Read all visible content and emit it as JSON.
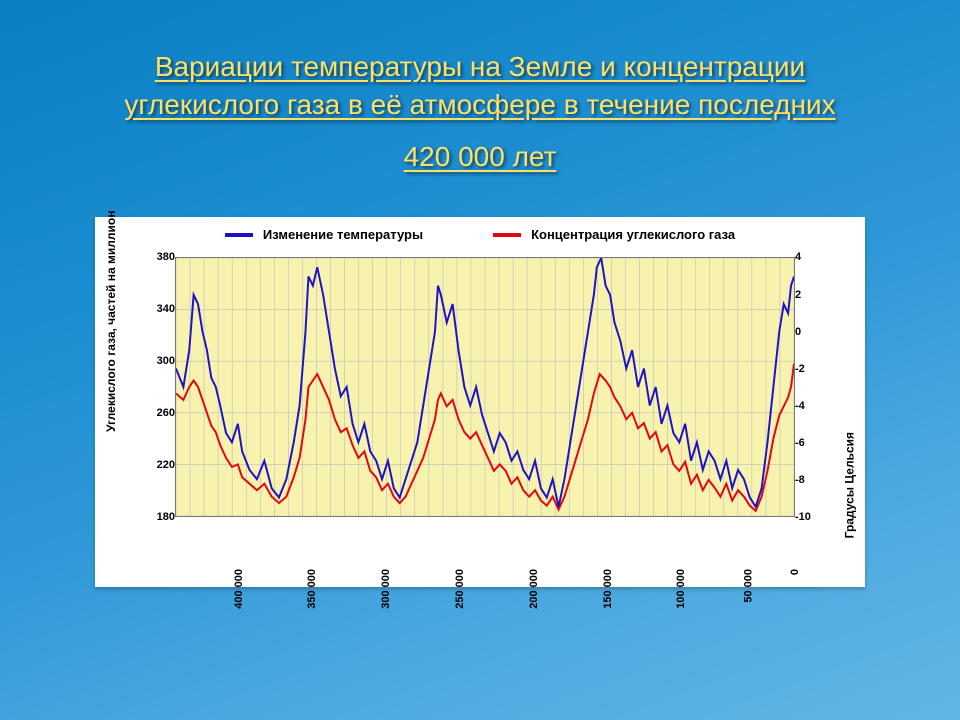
{
  "slide": {
    "background_gradient": [
      "#0a7fc1",
      "#62b6e5"
    ],
    "title_line1": "Вариации температуры на Земле и концентрации",
    "title_line2": "углекислого газа в её атмосфере в течение последних",
    "title_line3": "420 000 лет",
    "title_color": "#ffe066",
    "title_fontsize": 28
  },
  "chart": {
    "type": "line-dual-axis",
    "card_bg": "#ffffff",
    "plot_bg": "#f7f3ae",
    "grid_color": "#bdbdbd",
    "grid_major_every": 2,
    "axis_border_color": "#777777",
    "legend": {
      "items": [
        {
          "label": "Изменение температуры",
          "color": "#1e12c8",
          "thickness": 4
        },
        {
          "label": "Концентрация углекислого газа",
          "color": "#e30613",
          "thickness": 4
        }
      ],
      "fontsize": 13
    },
    "x_axis": {
      "domain_min": -420000,
      "domain_max": 0,
      "ticks": [
        -400000,
        -350000,
        -300000,
        -250000,
        -200000,
        -150000,
        -100000,
        -50000,
        0
      ],
      "tick_labels": [
        "400 000",
        "350 000",
        "300 000",
        "250 000",
        "200 000",
        "150 000",
        "100 000",
        "50 000",
        "0"
      ],
      "tick_fontsize": 11,
      "tick_rotation_deg": -90
    },
    "y_left": {
      "label": "Углекислого газа, частей на миллион",
      "label_fontsize": 12,
      "min": 180,
      "max": 380,
      "ticks": [
        180,
        220,
        260,
        300,
        340,
        380
      ],
      "tick_labels": [
        "180",
        "220",
        "260",
        "300",
        "340",
        "380"
      ]
    },
    "y_right": {
      "label": "Градусы Цельсия",
      "label_fontsize": 12,
      "min": -10,
      "max": 4,
      "ticks": [
        -10,
        -8,
        -6,
        -4,
        -2,
        0,
        2,
        4
      ],
      "tick_labels": [
        "-10",
        "-8",
        "-6",
        "-4",
        "-2",
        "0",
        "2",
        "4"
      ]
    },
    "series_temp": {
      "color": "#1e12c8",
      "width": 2,
      "axis": "right",
      "points": [
        [
          -420000,
          -2
        ],
        [
          -415000,
          -3
        ],
        [
          -411000,
          -1
        ],
        [
          -408000,
          2
        ],
        [
          -405000,
          1.5
        ],
        [
          -402000,
          0
        ],
        [
          -399000,
          -1
        ],
        [
          -396000,
          -2.5
        ],
        [
          -393000,
          -3
        ],
        [
          -390000,
          -4
        ],
        [
          -386000,
          -5.5
        ],
        [
          -382000,
          -6
        ],
        [
          -378000,
          -5
        ],
        [
          -375000,
          -6.5
        ],
        [
          -370000,
          -7.5
        ],
        [
          -365000,
          -8
        ],
        [
          -360000,
          -7
        ],
        [
          -355000,
          -8.5
        ],
        [
          -350000,
          -9
        ],
        [
          -345000,
          -8
        ],
        [
          -340000,
          -6
        ],
        [
          -336000,
          -4
        ],
        [
          -332000,
          0
        ],
        [
          -330000,
          3
        ],
        [
          -327000,
          2.5
        ],
        [
          -324000,
          3.5
        ],
        [
          -320000,
          2
        ],
        [
          -316000,
          0
        ],
        [
          -312000,
          -2
        ],
        [
          -308000,
          -3.5
        ],
        [
          -304000,
          -3
        ],
        [
          -300000,
          -5
        ],
        [
          -296000,
          -6
        ],
        [
          -292000,
          -5
        ],
        [
          -288000,
          -6.5
        ],
        [
          -284000,
          -7
        ],
        [
          -280000,
          -8
        ],
        [
          -276000,
          -7
        ],
        [
          -272000,
          -8.5
        ],
        [
          -268000,
          -9
        ],
        [
          -264000,
          -8
        ],
        [
          -260000,
          -7
        ],
        [
          -256000,
          -6
        ],
        [
          -252000,
          -4
        ],
        [
          -248000,
          -2
        ],
        [
          -244000,
          0
        ],
        [
          -242000,
          2.5
        ],
        [
          -240000,
          2
        ],
        [
          -236000,
          0.5
        ],
        [
          -232000,
          1.5
        ],
        [
          -228000,
          -1
        ],
        [
          -224000,
          -3
        ],
        [
          -220000,
          -4
        ],
        [
          -216000,
          -3
        ],
        [
          -212000,
          -4.5
        ],
        [
          -208000,
          -5.5
        ],
        [
          -204000,
          -6.5
        ],
        [
          -200000,
          -5.5
        ],
        [
          -196000,
          -6
        ],
        [
          -192000,
          -7
        ],
        [
          -188000,
          -6.5
        ],
        [
          -184000,
          -7.5
        ],
        [
          -180000,
          -8
        ],
        [
          -176000,
          -7
        ],
        [
          -172000,
          -8.5
        ],
        [
          -168000,
          -9
        ],
        [
          -164000,
          -8
        ],
        [
          -160000,
          -9.5
        ],
        [
          -156000,
          -8
        ],
        [
          -152000,
          -6
        ],
        [
          -148000,
          -4
        ],
        [
          -144000,
          -2
        ],
        [
          -140000,
          0
        ],
        [
          -136000,
          2
        ],
        [
          -134000,
          3.5
        ],
        [
          -131000,
          4
        ],
        [
          -128000,
          2.5
        ],
        [
          -125000,
          2
        ],
        [
          -122000,
          0.5
        ],
        [
          -118000,
          -0.5
        ],
        [
          -114000,
          -2
        ],
        [
          -110000,
          -1
        ],
        [
          -106000,
          -3
        ],
        [
          -102000,
          -2
        ],
        [
          -98000,
          -4
        ],
        [
          -94000,
          -3
        ],
        [
          -90000,
          -5
        ],
        [
          -86000,
          -4
        ],
        [
          -82000,
          -5.5
        ],
        [
          -78000,
          -6
        ],
        [
          -74000,
          -5
        ],
        [
          -70000,
          -7
        ],
        [
          -66000,
          -6
        ],
        [
          -62000,
          -7.5
        ],
        [
          -58000,
          -6.5
        ],
        [
          -54000,
          -7
        ],
        [
          -50000,
          -8
        ],
        [
          -46000,
          -7
        ],
        [
          -42000,
          -8.5
        ],
        [
          -38000,
          -7.5
        ],
        [
          -34000,
          -8
        ],
        [
          -30000,
          -9
        ],
        [
          -26000,
          -9.5
        ],
        [
          -22000,
          -8.5
        ],
        [
          -18000,
          -6
        ],
        [
          -14000,
          -3
        ],
        [
          -10000,
          0
        ],
        [
          -7000,
          1.5
        ],
        [
          -4000,
          1
        ],
        [
          -2000,
          2.5
        ],
        [
          0,
          3
        ]
      ]
    },
    "series_co2": {
      "color": "#e30613",
      "width": 2,
      "axis": "left",
      "points": [
        [
          -420000,
          275
        ],
        [
          -415000,
          270
        ],
        [
          -411000,
          280
        ],
        [
          -408000,
          285
        ],
        [
          -405000,
          280
        ],
        [
          -402000,
          270
        ],
        [
          -399000,
          260
        ],
        [
          -396000,
          250
        ],
        [
          -393000,
          245
        ],
        [
          -390000,
          235
        ],
        [
          -386000,
          225
        ],
        [
          -382000,
          218
        ],
        [
          -378000,
          220
        ],
        [
          -375000,
          210
        ],
        [
          -370000,
          205
        ],
        [
          -365000,
          200
        ],
        [
          -360000,
          205
        ],
        [
          -355000,
          195
        ],
        [
          -350000,
          190
        ],
        [
          -345000,
          195
        ],
        [
          -340000,
          210
        ],
        [
          -336000,
          225
        ],
        [
          -332000,
          255
        ],
        [
          -330000,
          280
        ],
        [
          -327000,
          285
        ],
        [
          -324000,
          290
        ],
        [
          -320000,
          280
        ],
        [
          -316000,
          270
        ],
        [
          -312000,
          255
        ],
        [
          -308000,
          245
        ],
        [
          -304000,
          248
        ],
        [
          -300000,
          235
        ],
        [
          -296000,
          225
        ],
        [
          -292000,
          230
        ],
        [
          -288000,
          215
        ],
        [
          -284000,
          210
        ],
        [
          -280000,
          200
        ],
        [
          -276000,
          205
        ],
        [
          -272000,
          195
        ],
        [
          -268000,
          190
        ],
        [
          -264000,
          195
        ],
        [
          -260000,
          205
        ],
        [
          -256000,
          215
        ],
        [
          -252000,
          225
        ],
        [
          -248000,
          240
        ],
        [
          -244000,
          255
        ],
        [
          -242000,
          270
        ],
        [
          -240000,
          275
        ],
        [
          -236000,
          265
        ],
        [
          -232000,
          270
        ],
        [
          -228000,
          255
        ],
        [
          -224000,
          245
        ],
        [
          -220000,
          240
        ],
        [
          -216000,
          245
        ],
        [
          -212000,
          235
        ],
        [
          -208000,
          225
        ],
        [
          -204000,
          215
        ],
        [
          -200000,
          220
        ],
        [
          -196000,
          215
        ],
        [
          -192000,
          205
        ],
        [
          -188000,
          210
        ],
        [
          -184000,
          200
        ],
        [
          -180000,
          195
        ],
        [
          -176000,
          200
        ],
        [
          -172000,
          192
        ],
        [
          -168000,
          188
        ],
        [
          -164000,
          195
        ],
        [
          -160000,
          185
        ],
        [
          -156000,
          195
        ],
        [
          -152000,
          210
        ],
        [
          -148000,
          225
        ],
        [
          -144000,
          240
        ],
        [
          -140000,
          255
        ],
        [
          -136000,
          275
        ],
        [
          -132000,
          290
        ],
        [
          -128000,
          285
        ],
        [
          -125000,
          280
        ],
        [
          -122000,
          272
        ],
        [
          -118000,
          265
        ],
        [
          -114000,
          255
        ],
        [
          -110000,
          260
        ],
        [
          -106000,
          248
        ],
        [
          -102000,
          252
        ],
        [
          -98000,
          240
        ],
        [
          -94000,
          245
        ],
        [
          -90000,
          230
        ],
        [
          -86000,
          235
        ],
        [
          -82000,
          220
        ],
        [
          -78000,
          215
        ],
        [
          -74000,
          222
        ],
        [
          -70000,
          205
        ],
        [
          -66000,
          212
        ],
        [
          -62000,
          200
        ],
        [
          -58000,
          208
        ],
        [
          -54000,
          202
        ],
        [
          -50000,
          195
        ],
        [
          -46000,
          205
        ],
        [
          -42000,
          192
        ],
        [
          -38000,
          200
        ],
        [
          -34000,
          195
        ],
        [
          -30000,
          188
        ],
        [
          -26000,
          184
        ],
        [
          -22000,
          195
        ],
        [
          -18000,
          215
        ],
        [
          -14000,
          240
        ],
        [
          -10000,
          258
        ],
        [
          -7000,
          265
        ],
        [
          -4000,
          272
        ],
        [
          -2000,
          280
        ],
        [
          0,
          298
        ]
      ]
    }
  }
}
